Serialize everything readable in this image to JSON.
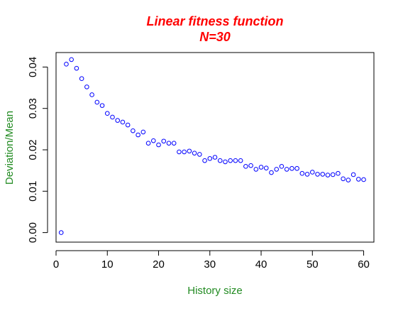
{
  "chart_data": {
    "type": "scatter",
    "title": "Linear fitness function",
    "subtitle": "N=30",
    "xlabel": "History size",
    "ylabel": "Deviation/Mean",
    "xlim": [
      0,
      62
    ],
    "ylim": [
      -0.0023,
      0.0435
    ],
    "xticks": [
      0,
      10,
      20,
      30,
      40,
      50,
      60
    ],
    "yticks": [
      0.0,
      0.01,
      0.02,
      0.03,
      0.04
    ],
    "xtick_labels": [
      "0",
      "10",
      "20",
      "30",
      "40",
      "50",
      "60"
    ],
    "ytick_labels": [
      "0.00",
      "0.01",
      "0.02",
      "0.03",
      "0.04"
    ],
    "grid": false,
    "legend": "none",
    "title_color": "#ff0000",
    "label_color": "#228b22",
    "point_color": "#0000ff",
    "series": [
      {
        "x": [
          1,
          2,
          3,
          4,
          5,
          6,
          7,
          8,
          9,
          10,
          11,
          12,
          13,
          14,
          15,
          16,
          17,
          18,
          19,
          20,
          21,
          22,
          23,
          24,
          25,
          26,
          27,
          28,
          29,
          30,
          31,
          32,
          33,
          34,
          35,
          36,
          37,
          38,
          39,
          40,
          41,
          42,
          43,
          44,
          45,
          46,
          47,
          48,
          49,
          50,
          51,
          52,
          53,
          54,
          55,
          56,
          57,
          58,
          59,
          60
        ],
        "y": [
          0.0,
          0.0407,
          0.0418,
          0.0397,
          0.0372,
          0.0352,
          0.0333,
          0.0315,
          0.0307,
          0.0288,
          0.0279,
          0.0271,
          0.0267,
          0.026,
          0.0246,
          0.0236,
          0.0243,
          0.0216,
          0.0222,
          0.0212,
          0.0221,
          0.0216,
          0.0216,
          0.0195,
          0.0195,
          0.0197,
          0.0192,
          0.0189,
          0.0174,
          0.0179,
          0.0182,
          0.0174,
          0.0171,
          0.0174,
          0.0174,
          0.0174,
          0.016,
          0.0162,
          0.0153,
          0.0158,
          0.0156,
          0.0145,
          0.0153,
          0.016,
          0.0153,
          0.0155,
          0.0155,
          0.0143,
          0.0141,
          0.0146,
          0.0141,
          0.0141,
          0.0139,
          0.014,
          0.0143,
          0.013,
          0.0127,
          0.014,
          0.0129,
          0.0128
        ]
      }
    ]
  }
}
